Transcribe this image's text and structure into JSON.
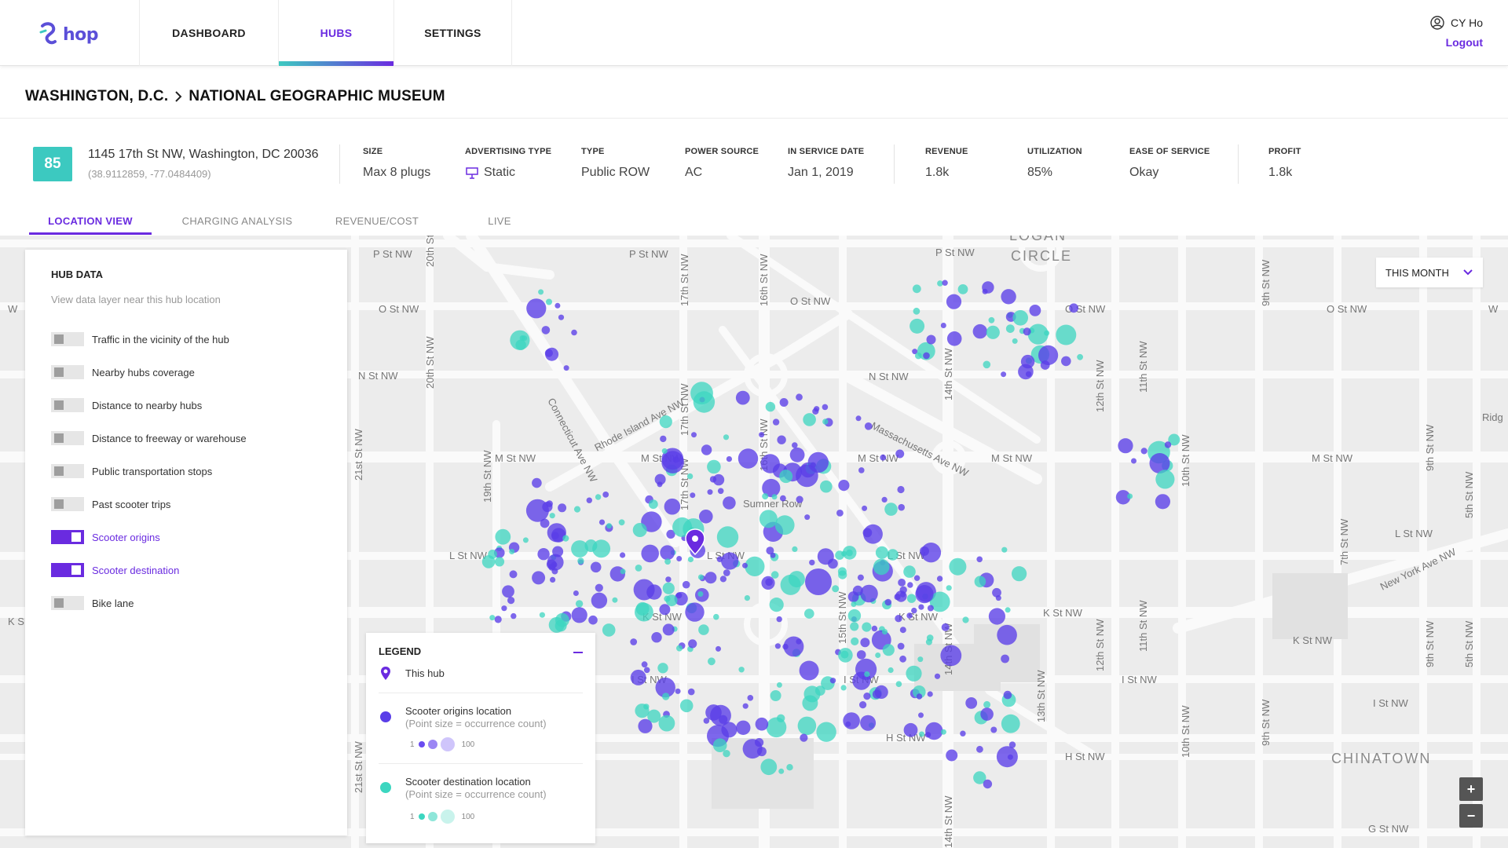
{
  "brand": {
    "name": "hop"
  },
  "nav": {
    "tabs": [
      {
        "label": "DASHBOARD",
        "active": false
      },
      {
        "label": "HUBS",
        "active": true
      },
      {
        "label": "SETTINGS",
        "active": false
      }
    ]
  },
  "user": {
    "name": "CY Ho",
    "logout_label": "Logout",
    "icon": "user-circle-icon"
  },
  "breadcrumb": {
    "city": "WASHINGTON, D.C.",
    "hub": "NATIONAL GEOGRAPHIC MUSEUM"
  },
  "hub": {
    "score": "85",
    "address": "1145 17th St NW, Washington, DC 20036",
    "coords": "(38.9112859, -77.0484409)",
    "stats": [
      {
        "label": "SIZE",
        "value": "Max 8 plugs"
      },
      {
        "label": "ADVERTISING TYPE",
        "value": "Static",
        "icon": "billboard-icon"
      },
      {
        "label": "TYPE",
        "value": "Public ROW"
      },
      {
        "label": "POWER SOURCE",
        "value": "AC"
      },
      {
        "label": "IN SERVICE DATE",
        "value": "Jan 1, 2019"
      },
      {
        "label": "REVENUE",
        "value": "1.8k"
      },
      {
        "label": "UTILIZATION",
        "value": "85%"
      },
      {
        "label": "EASE OF SERVICE",
        "value": "Okay"
      },
      {
        "label": "PROFIT",
        "value": "1.8k"
      }
    ]
  },
  "subtabs": [
    {
      "label": "LOCATION VIEW",
      "active": true
    },
    {
      "label": "CHARGING ANALYSIS",
      "active": false
    },
    {
      "label": "REVENUE/COST",
      "active": false
    },
    {
      "label": "LIVE",
      "active": false
    }
  ],
  "hub_panel": {
    "title": "HUB DATA",
    "subtitle": "View data layer near this hub location",
    "layers": [
      {
        "label": "Traffic in the vicinity of the hub",
        "on": false
      },
      {
        "label": "Nearby hubs coverage",
        "on": false
      },
      {
        "label": "Distance to nearby hubs",
        "on": false
      },
      {
        "label": "Distance to freeway or warehouse",
        "on": false
      },
      {
        "label": "Public transportation stops",
        "on": false
      },
      {
        "label": "Past scooter trips",
        "on": false
      },
      {
        "label": "Scooter origins",
        "on": true
      },
      {
        "label": "Scooter destination",
        "on": true
      },
      {
        "label": "Bike lane",
        "on": false
      }
    ]
  },
  "legend": {
    "title": "LEGEND",
    "this_hub": "This hub",
    "origins_label": "Scooter origins location",
    "origins_sub": "(Point size = occurrence count)",
    "dest_label": "Scooter destination location",
    "dest_sub": "(Point size = occurrence count)",
    "scale_min": "1",
    "scale_max": "100"
  },
  "month_select": {
    "value": "THIS MONTH"
  },
  "zoom": {
    "in": "+",
    "out": "−"
  },
  "colors": {
    "accent": "#6a2be0",
    "teal": "#3cc9c0",
    "origin_dot": "#6a4cf0",
    "dest_dot": "#3cd6c0"
  },
  "map": {
    "streets": [
      "P St NW",
      "O St NW",
      "N St NW",
      "M St NW",
      "L St NW",
      "K St NW",
      "I St NW",
      "H St NW",
      "G St NW",
      "21st St NW",
      "20th St NW",
      "19th St NW",
      "17th St NW",
      "16th St NW",
      "15th St NW",
      "14th St NW",
      "13th St NW",
      "12th St NW",
      "11th St NW",
      "10th St NW",
      "9th St NW",
      "7th St NW",
      "5th St NW",
      "Connecticut Ave NW",
      "Rhode Island Ave NW",
      "Massachusetts Ave NW",
      "New York Ave NW",
      "Sumner Row",
      "LOGAN CIRCLE",
      "CHINATOWN",
      "Ridg"
    ]
  }
}
